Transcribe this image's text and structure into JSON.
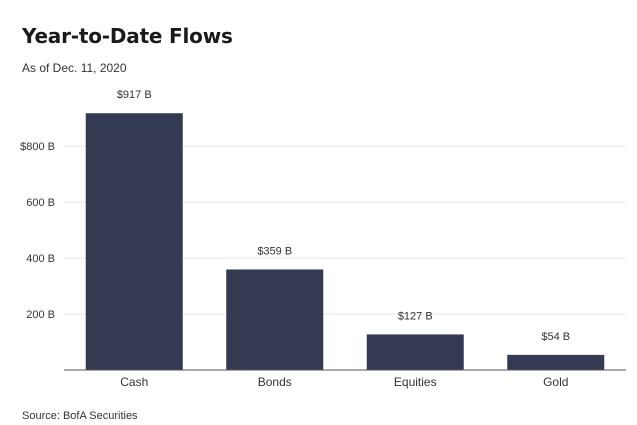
{
  "header": {
    "title": "Year-to-Date Flows",
    "subtitle": "As of Dec. 11, 2020"
  },
  "footer": {
    "source": "Source: BofA Securities"
  },
  "colors": {
    "bar": "#333a52",
    "grid": "#e6e6e6",
    "axis": "#555555",
    "text": "#333333"
  },
  "chart_data": {
    "type": "bar",
    "title": "Year-to-Date Flows",
    "subtitle": "As of Dec. 11, 2020",
    "xlabel": "",
    "ylabel": "",
    "categories": [
      "Cash",
      "Bonds",
      "Equities",
      "Gold"
    ],
    "values": [
      917,
      359,
      127,
      54
    ],
    "data_labels": [
      "$917 B",
      "$359 B",
      "$127 B",
      "$54 B"
    ],
    "unit": "B",
    "ylim": [
      0,
      1000
    ],
    "yticks": [
      200,
      400,
      600,
      800
    ],
    "ytick_labels": [
      "200 B",
      "400 B",
      "600 B",
      "$800 B"
    ],
    "grid": true,
    "legend": "none"
  }
}
